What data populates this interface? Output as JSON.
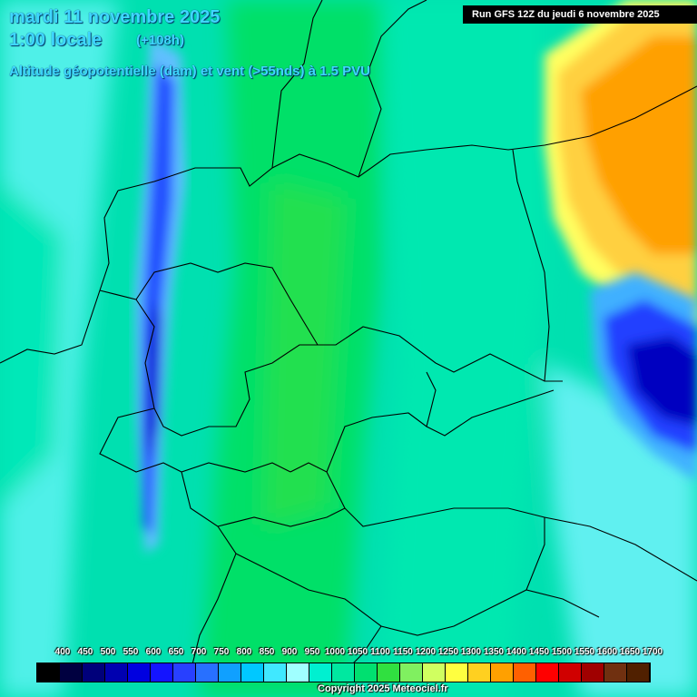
{
  "header": {
    "date": "mardi 11 novembre 2025",
    "time": "1:00 locale",
    "lead": "(+108h)",
    "parameter": "Altitude géopotentielle (dam) et vent (>55nds) à 1.5 PVU",
    "run": "Run GFS 12Z du jeudi 6 novembre 2025"
  },
  "legend": {
    "labels": [
      "400",
      "450",
      "500",
      "550",
      "600",
      "650",
      "700",
      "750",
      "800",
      "850",
      "900",
      "950",
      "1000",
      "1050",
      "1100",
      "1150",
      "1200",
      "1250",
      "1300",
      "1350",
      "1400",
      "1450",
      "1500",
      "1550",
      "1600",
      "1650",
      "1700"
    ],
    "colors": [
      "#000000",
      "#000040",
      "#00007a",
      "#0000b0",
      "#0000e0",
      "#1414ff",
      "#2840ff",
      "#2870ff",
      "#10a0ff",
      "#00c8ff",
      "#40e8ff",
      "#a0ffff",
      "#00f0d0",
      "#00e8a0",
      "#00e070",
      "#30e040",
      "#80f060",
      "#d0ff60",
      "#ffff40",
      "#ffd020",
      "#ffa000",
      "#ff6000",
      "#ff0000",
      "#d00000",
      "#a00000",
      "#703010",
      "#502000"
    ]
  },
  "copyright": "Copyright 2025 Meteociel.fr"
}
